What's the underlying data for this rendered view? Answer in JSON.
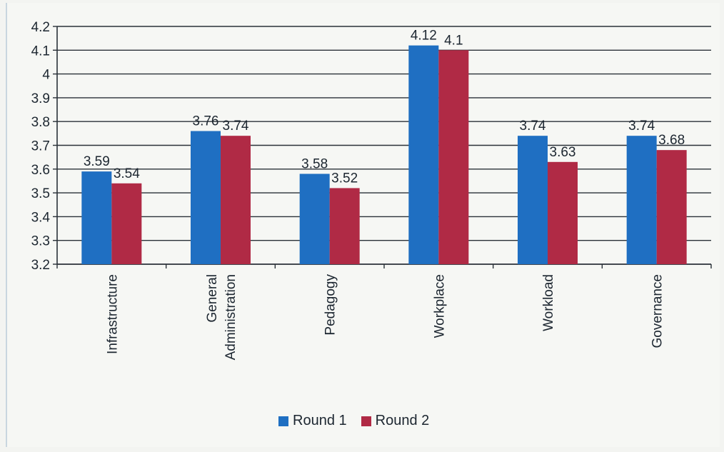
{
  "chart_data": {
    "type": "bar",
    "categories": [
      "Infrastructure",
      "General Administration",
      "Pedagogy",
      "Workplace",
      "Workload",
      "Governance"
    ],
    "category_label_lines": [
      [
        "Infrastructure"
      ],
      [
        "General",
        "Administration"
      ],
      [
        "Pedagogy"
      ],
      [
        "Workplace"
      ],
      [
        "Workload"
      ],
      [
        "Governance"
      ]
    ],
    "series": [
      {
        "name": "Round 1",
        "values": [
          3.59,
          3.76,
          3.58,
          4.12,
          3.74,
          3.74
        ],
        "labels": [
          "3.59",
          "3.76",
          "3.58",
          "4.12",
          "3.74",
          "3.74"
        ],
        "color": "#1f6fc2"
      },
      {
        "name": "Round 2",
        "values": [
          3.54,
          3.74,
          3.52,
          4.1,
          3.63,
          3.68
        ],
        "labels": [
          "3.54",
          "3.74",
          "3.52",
          "4.1",
          "3.63",
          "3.68"
        ],
        "color": "#b02a45"
      }
    ],
    "ylim": [
      3.2,
      4.2
    ],
    "yticks": [
      "3.2",
      "3.3",
      "3.4",
      "3.5",
      "3.6",
      "3.7",
      "3.8",
      "3.9",
      "4",
      "4.1",
      "4.2"
    ],
    "grid": true,
    "legend_position": "bottom",
    "title": "",
    "xlabel": "",
    "ylabel": ""
  }
}
